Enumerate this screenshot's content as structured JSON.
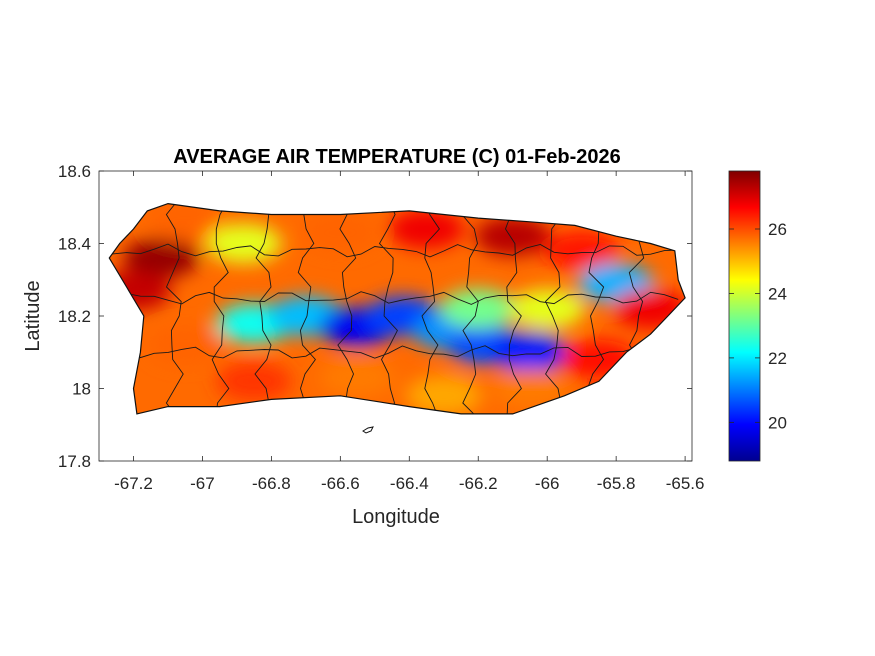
{
  "chart_data": {
    "type": "heatmap",
    "title": "AVERAGE AIR TEMPERATURE (C) 01-Feb-2026",
    "xlabel": "Longitude",
    "ylabel": "Latitude",
    "xlim": [
      -67.3,
      -65.58
    ],
    "ylim": [
      17.8,
      18.6
    ],
    "xticks": [
      -67.2,
      -67,
      -66.8,
      -66.6,
      -66.4,
      -66.2,
      -66,
      -65.8,
      -65.6
    ],
    "xtick_labels": [
      "-67.2",
      "-67",
      "-66.8",
      "-66.6",
      "-66.4",
      "-66.2",
      "-66",
      "-65.8",
      "-65.6"
    ],
    "yticks": [
      18.6,
      18.4,
      18.2,
      18,
      17.8
    ],
    "ytick_labels": [
      "18.6",
      "18.4",
      "18.2",
      "18",
      "17.8"
    ],
    "colorbar": {
      "colormap": "jet",
      "min": 18.8,
      "max": 27.8,
      "ticks": [
        20,
        22,
        24,
        26
      ],
      "tick_labels": [
        "20",
        "22",
        "24",
        "26"
      ]
    },
    "region": "Puerto Rico",
    "outline": [
      [
        -67.27,
        18.36
      ],
      [
        -67.24,
        18.4
      ],
      [
        -67.2,
        18.44
      ],
      [
        -67.16,
        18.49
      ],
      [
        -67.1,
        18.51
      ],
      [
        -66.95,
        18.49
      ],
      [
        -66.8,
        18.48
      ],
      [
        -66.6,
        18.48
      ],
      [
        -66.4,
        18.49
      ],
      [
        -66.2,
        18.47
      ],
      [
        -66.05,
        18.46
      ],
      [
        -65.92,
        18.45
      ],
      [
        -65.8,
        18.42
      ],
      [
        -65.7,
        18.4
      ],
      [
        -65.63,
        18.38
      ],
      [
        -65.62,
        18.3
      ],
      [
        -65.6,
        18.25
      ],
      [
        -65.65,
        18.2
      ],
      [
        -65.7,
        18.15
      ],
      [
        -65.77,
        18.1
      ],
      [
        -65.85,
        18.02
      ],
      [
        -65.95,
        17.98
      ],
      [
        -66.1,
        17.93
      ],
      [
        -66.25,
        17.93
      ],
      [
        -66.4,
        17.95
      ],
      [
        -66.6,
        17.98
      ],
      [
        -66.8,
        17.97
      ],
      [
        -66.95,
        17.95
      ],
      [
        -67.1,
        17.95
      ],
      [
        -67.19,
        17.93
      ],
      [
        -67.2,
        18.0
      ],
      [
        -67.18,
        18.1
      ],
      [
        -67.17,
        18.2
      ],
      [
        -67.22,
        18.28
      ],
      [
        -67.27,
        18.36
      ]
    ],
    "temperature_zones": [
      {
        "lon": -67.12,
        "lat": 18.36,
        "value": 27.6
      },
      {
        "lon": -67.2,
        "lat": 18.27,
        "value": 27.2
      },
      {
        "lon": -67.05,
        "lat": 18.46,
        "value": 25.8
      },
      {
        "lon": -66.88,
        "lat": 18.4,
        "value": 24.2
      },
      {
        "lon": -66.6,
        "lat": 18.43,
        "value": 25.8
      },
      {
        "lon": -66.35,
        "lat": 18.44,
        "value": 26.8
      },
      {
        "lon": -66.1,
        "lat": 18.42,
        "value": 27.3
      },
      {
        "lon": -65.9,
        "lat": 18.38,
        "value": 26.5
      },
      {
        "lon": -65.8,
        "lat": 18.29,
        "value": 21.5
      },
      {
        "lon": -65.7,
        "lat": 18.22,
        "value": 26.8
      },
      {
        "lon": -66.85,
        "lat": 18.18,
        "value": 22.3
      },
      {
        "lon": -66.7,
        "lat": 18.2,
        "value": 21.6
      },
      {
        "lon": -66.55,
        "lat": 18.17,
        "value": 19.8
      },
      {
        "lon": -66.42,
        "lat": 18.2,
        "value": 20.5
      },
      {
        "lon": -66.28,
        "lat": 18.16,
        "value": 21.2
      },
      {
        "lon": -66.18,
        "lat": 18.12,
        "value": 20.6
      },
      {
        "lon": -66.05,
        "lat": 18.1,
        "value": 20.2
      },
      {
        "lon": -66.2,
        "lat": 18.22,
        "value": 23.2
      },
      {
        "lon": -66.0,
        "lat": 18.22,
        "value": 24.2
      },
      {
        "lon": -67.05,
        "lat": 18.12,
        "value": 25.8
      },
      {
        "lon": -66.85,
        "lat": 18.02,
        "value": 26.2
      },
      {
        "lon": -66.55,
        "lat": 18.03,
        "value": 25.6
      },
      {
        "lon": -66.3,
        "lat": 17.98,
        "value": 25.2
      },
      {
        "lon": -66.05,
        "lat": 18.0,
        "value": 25.6
      },
      {
        "lon": -65.85,
        "lat": 18.08,
        "value": 26.6
      }
    ]
  }
}
